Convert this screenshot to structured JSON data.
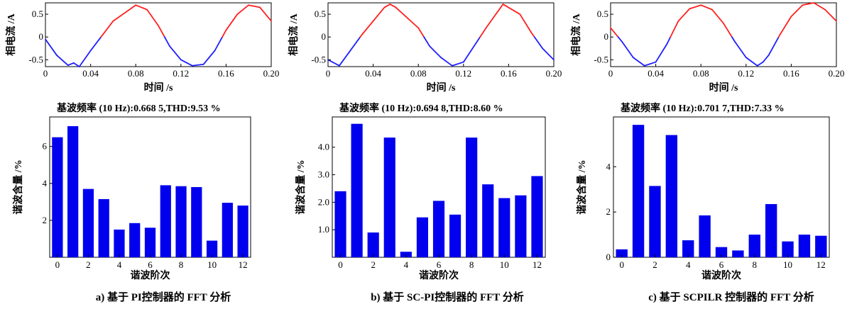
{
  "colors": {
    "positive_half": "#ff2020",
    "negative_half": "#1f1fff",
    "bar": "#0000ee",
    "axis": "#000000"
  },
  "panels": [
    {
      "caption": "a)   基于 PI控制器的 FFT 分析",
      "current": {
        "ylabel": "相电流 /A",
        "xlabel": "时间 /s",
        "xticks": [
          "0",
          "0.04",
          "0.08",
          "0.12",
          "0.16",
          "0.20"
        ],
        "yticks": [
          "0.5",
          "0",
          "-0.5"
        ],
        "xlim": [
          0,
          0.2
        ],
        "ylim": [
          -0.65,
          0.75
        ]
      },
      "fft": {
        "title": "基波频率 (10 Hz):0.668 5,THD:9.53 %",
        "ylabel": "谐波含量 /%",
        "xlabel": "谐波阶次",
        "xticks": [
          "0",
          "2",
          "4",
          "6",
          "8",
          "10",
          "12"
        ],
        "yticks": [
          "2",
          "4",
          "6"
        ],
        "ylim": [
          0,
          7.6
        ]
      }
    },
    {
      "caption": "b)   基于 SC-PI控制器的 FFT 分析",
      "current": {
        "ylabel": "相电流 /A",
        "xlabel": "时间 /s",
        "xticks": [
          "0",
          "0.04",
          "0.08",
          "0.12",
          "0.16",
          "0.20"
        ],
        "yticks": [
          "0.5",
          "0",
          "-0.5"
        ],
        "xlim": [
          0,
          0.2
        ],
        "ylim": [
          -0.65,
          0.75
        ]
      },
      "fft": {
        "title": "基波频率 (10 Hz):0.694 8,THD:8.60 %",
        "ylabel": "谐波含量 /%",
        "xlabel": "谐波阶次",
        "xticks": [
          "0",
          "2",
          "4",
          "6",
          "8",
          "10",
          "12"
        ],
        "yticks": [
          "1.0",
          "2.0",
          "3.0",
          "4.0"
        ],
        "ylim": [
          0,
          5.1
        ]
      }
    },
    {
      "caption": "c)   基于 SCPILR 控制器的 FFT 分析",
      "current": {
        "ylabel": "相电流 /A",
        "xlabel": "时间 /s",
        "xticks": [
          "0",
          "0.04",
          "0.08",
          "0.12",
          "0.16",
          "0.20"
        ],
        "yticks": [
          "0.5",
          "0",
          "-0.5"
        ],
        "xlim": [
          0,
          0.2
        ],
        "ylim": [
          -0.65,
          0.75
        ]
      },
      "fft": {
        "title": "基波频率 (10 Hz):0.701 7,THD:7.33 %",
        "ylabel": "谐波含量 /%",
        "xlabel": "谐波阶次",
        "xticks": [
          "0",
          "2",
          "4",
          "6",
          "8",
          "10",
          "12"
        ],
        "yticks": [
          "0",
          "2",
          "4"
        ],
        "ylim": [
          0,
          6.2
        ]
      }
    }
  ],
  "chart_data": [
    {
      "type": "line",
      "title": "",
      "xlabel": "时间 /s",
      "ylabel": "相电流 /A",
      "xlim": [
        0,
        0.2
      ],
      "ylim": [
        -0.65,
        0.75
      ],
      "series": [
        {
          "x": [
            0,
            0.01,
            0.02,
            0.025,
            0.03,
            0.04,
            0.06,
            0.08,
            0.09,
            0.1,
            0.11,
            0.12
          ],
          "y": [
            -0.05,
            -0.4,
            -0.62,
            -0.57,
            -0.65,
            -0.3,
            0.35,
            0.7,
            0.6,
            0.25,
            -0.2,
            -0.5
          ]
        },
        {
          "x": [
            0.12,
            0.13,
            0.14,
            0.15,
            0.16,
            0.17,
            0.18,
            0.19,
            0.2
          ],
          "y": [
            -0.5,
            -0.63,
            -0.6,
            -0.3,
            0.15,
            0.5,
            0.7,
            0.65,
            0.35
          ]
        }
      ]
    },
    {
      "type": "bar",
      "title": "基波频率 (10 Hz):0.668 5,THD:9.53 %",
      "xlabel": "谐波阶次",
      "ylabel": "谐波含量 /%",
      "ylim": [
        0,
        7.6
      ],
      "categories": [
        0,
        1,
        2,
        3,
        4,
        5,
        6,
        7,
        8,
        9,
        10,
        11,
        12
      ],
      "values": [
        6.5,
        7.1,
        3.7,
        3.15,
        1.5,
        1.85,
        1.6,
        3.9,
        3.85,
        3.8,
        0.9,
        2.95,
        2.8
      ]
    },
    {
      "type": "line",
      "title": "",
      "xlabel": "时间 /s",
      "ylabel": "相电流 /A",
      "xlim": [
        0,
        0.2
      ],
      "ylim": [
        -0.65,
        0.75
      ],
      "series": [
        {
          "x": [
            0,
            0.01,
            0.03,
            0.05,
            0.055,
            0.06,
            0.08,
            0.09,
            0.1
          ],
          "y": [
            -0.5,
            -0.63,
            0.05,
            0.65,
            0.72,
            0.65,
            0.2,
            -0.2,
            -0.45
          ]
        },
        {
          "x": [
            0.1,
            0.11,
            0.12,
            0.14,
            0.155,
            0.17,
            0.18,
            0.19,
            0.2
          ],
          "y": [
            -0.45,
            -0.63,
            -0.55,
            0.2,
            0.72,
            0.5,
            0.1,
            -0.25,
            -0.5
          ]
        }
      ]
    },
    {
      "type": "bar",
      "title": "基波频率 (10 Hz):0.694 8,THD:8.60 %",
      "xlabel": "谐波阶次",
      "ylabel": "谐波含量 /%",
      "ylim": [
        0,
        5.1
      ],
      "categories": [
        0,
        1,
        2,
        3,
        4,
        5,
        6,
        7,
        8,
        9,
        10,
        11,
        12
      ],
      "values": [
        2.4,
        4.85,
        0.9,
        4.35,
        0.2,
        1.45,
        2.05,
        1.55,
        4.35,
        2.65,
        2.15,
        2.25,
        2.95
      ]
    },
    {
      "type": "line",
      "title": "",
      "xlabel": "时间 /s",
      "ylabel": "相电流 /A",
      "xlim": [
        0,
        0.2
      ],
      "ylim": [
        -0.65,
        0.75
      ],
      "series": [
        {
          "x": [
            0,
            0.01,
            0.02,
            0.03,
            0.04,
            0.05,
            0.06,
            0.07,
            0.08,
            0.09,
            0.1,
            0.11,
            0.12,
            0.13,
            0.135,
            0.14,
            0.15,
            0.16,
            0.17,
            0.18,
            0.19,
            0.2
          ],
          "y": [
            0.2,
            -0.1,
            -0.45,
            -0.63,
            -0.55,
            -0.15,
            0.35,
            0.62,
            0.7,
            0.6,
            0.3,
            -0.1,
            -0.45,
            -0.63,
            -0.55,
            -0.4,
            0.05,
            0.45,
            0.7,
            0.75,
            0.6,
            0.35
          ]
        }
      ]
    },
    {
      "type": "bar",
      "title": "基波频率 (10 Hz):0.701 7,THD:7.33 %",
      "xlabel": "谐波阶次",
      "ylabel": "谐波含量 /%",
      "ylim": [
        0,
        6.2
      ],
      "categories": [
        0,
        1,
        2,
        3,
        4,
        5,
        6,
        7,
        8,
        9,
        10,
        11,
        12
      ],
      "values": [
        0.35,
        5.85,
        3.15,
        5.4,
        0.75,
        1.85,
        0.45,
        0.3,
        1.0,
        2.35,
        0.7,
        1.0,
        0.95
      ]
    }
  ]
}
